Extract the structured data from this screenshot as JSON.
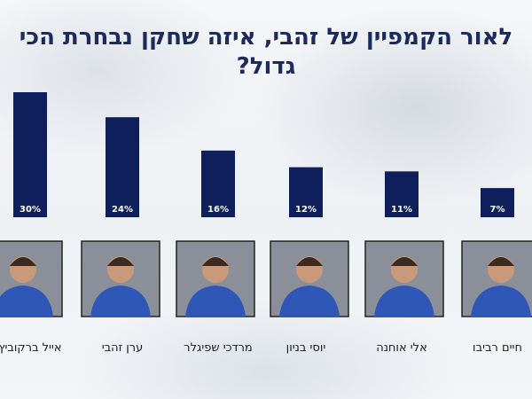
{
  "chart_data": {
    "type": "bar",
    "title": "לאור הקמפיין של זהבי, איזה שחקן נבחרת הכי גדול?",
    "categories": [
      "אייל ברקוביץ",
      "ערן זהבי",
      "מרדכי שפיגלר",
      "יוסי בניון",
      "אלי אוחנה",
      "חיים רביבו"
    ],
    "values": [
      30,
      24,
      16,
      12,
      11,
      7
    ],
    "value_labels": [
      "30%",
      "24%",
      "16%",
      "12%",
      "11%",
      "7%"
    ],
    "unit": "%",
    "ylim": [
      0,
      30
    ],
    "grid": false,
    "legend": "none"
  },
  "colors": {
    "bar": "#0f1f5c",
    "title": "#1c2a5c",
    "value_label": "#ffffff"
  }
}
